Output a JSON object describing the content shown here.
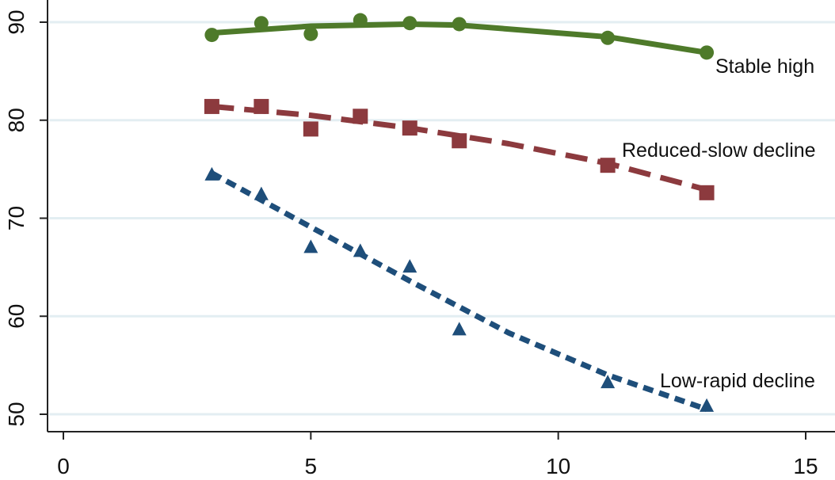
{
  "chart_data": {
    "type": "line",
    "title": "",
    "xlabel": "",
    "ylabel": "",
    "xlim": [
      0,
      15
    ],
    "ylim": [
      50,
      91
    ],
    "xticks": [
      0,
      5,
      10,
      15
    ],
    "yticks": [
      50,
      60,
      70,
      80,
      90
    ],
    "grid": "horizontal",
    "series": [
      {
        "name": "Stable high",
        "marker": "circle",
        "line_style": "solid",
        "color": "#4e7a2a",
        "points": [
          [
            3,
            88.7
          ],
          [
            4,
            89.9
          ],
          [
            5,
            88.8
          ],
          [
            6,
            90.2
          ],
          [
            7,
            89.9
          ],
          [
            8,
            89.8
          ],
          [
            11,
            88.4
          ],
          [
            13,
            86.9
          ]
        ],
        "fit": [
          [
            3,
            88.9
          ],
          [
            5,
            89.6
          ],
          [
            7,
            89.8
          ],
          [
            8,
            89.7
          ],
          [
            11,
            88.5
          ],
          [
            13,
            86.9
          ]
        ]
      },
      {
        "name": "Reduced-slow decline",
        "marker": "square",
        "line_style": "dashed",
        "color": "#8c3a3e",
        "points": [
          [
            3,
            81.4
          ],
          [
            4,
            81.4
          ],
          [
            5,
            79.1
          ],
          [
            6,
            80.4
          ],
          [
            7,
            79.2
          ],
          [
            8,
            77.9
          ],
          [
            11,
            75.4
          ],
          [
            13,
            72.6
          ]
        ],
        "fit": [
          [
            3,
            81.4
          ],
          [
            5,
            80.5
          ],
          [
            7,
            79.2
          ],
          [
            9,
            77.6
          ],
          [
            11,
            75.6
          ],
          [
            13,
            72.9
          ]
        ]
      },
      {
        "name": "Low-rapid decline",
        "marker": "triangle",
        "line_style": "dotted",
        "color": "#1e4e7a",
        "points": [
          [
            3,
            74.5
          ],
          [
            4,
            72.5
          ],
          [
            5,
            67.1
          ],
          [
            6,
            66.7
          ],
          [
            7,
            65.1
          ],
          [
            8,
            58.7
          ],
          [
            11,
            53.3
          ],
          [
            13,
            50.9
          ]
        ],
        "fit": [
          [
            3,
            74.6
          ],
          [
            5,
            69.1
          ],
          [
            7,
            63.6
          ],
          [
            9,
            58.3
          ],
          [
            11,
            54.0
          ],
          [
            13,
            50.5
          ]
        ]
      }
    ]
  }
}
